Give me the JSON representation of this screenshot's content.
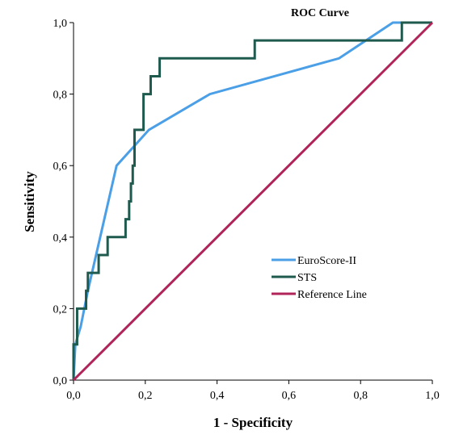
{
  "chart_data": {
    "type": "line",
    "title": "ROC Curve",
    "xlabel": "1 - Specificity",
    "ylabel": "Sensitivity",
    "xlim": [
      0,
      1
    ],
    "ylim": [
      0,
      1
    ],
    "x_ticks": [
      {
        "value": 0.0,
        "label": "0,0"
      },
      {
        "value": 0.2,
        "label": "0,2"
      },
      {
        "value": 0.4,
        "label": "0,4"
      },
      {
        "value": 0.6,
        "label": "0,6"
      },
      {
        "value": 0.8,
        "label": "0,8"
      },
      {
        "value": 1.0,
        "label": "1,0"
      }
    ],
    "y_ticks": [
      {
        "value": 0.0,
        "label": "0,0"
      },
      {
        "value": 0.2,
        "label": "0,2"
      },
      {
        "value": 0.4,
        "label": "0,4"
      },
      {
        "value": 0.6,
        "label": "0,6"
      },
      {
        "value": 0.8,
        "label": "0,8"
      },
      {
        "value": 1.0,
        "label": "1,0"
      }
    ],
    "grid": false,
    "legend_position": "lower-right",
    "series": [
      {
        "name": "EuroScore-II",
        "color": "#4a9fe6",
        "points": [
          [
            0.0,
            0.0
          ],
          [
            0.005,
            0.1
          ],
          [
            0.02,
            0.15
          ],
          [
            0.04,
            0.25
          ],
          [
            0.12,
            0.6
          ],
          [
            0.21,
            0.7
          ],
          [
            0.38,
            0.8
          ],
          [
            0.74,
            0.9
          ],
          [
            0.89,
            1.0
          ],
          [
            1.0,
            1.0
          ]
        ]
      },
      {
        "name": "STS",
        "color": "#1f5a4e",
        "points": [
          [
            0.0,
            0.0
          ],
          [
            0.0,
            0.1
          ],
          [
            0.01,
            0.1
          ],
          [
            0.01,
            0.2
          ],
          [
            0.035,
            0.2
          ],
          [
            0.035,
            0.25
          ],
          [
            0.04,
            0.25
          ],
          [
            0.04,
            0.3
          ],
          [
            0.07,
            0.3
          ],
          [
            0.07,
            0.35
          ],
          [
            0.095,
            0.35
          ],
          [
            0.095,
            0.4
          ],
          [
            0.145,
            0.4
          ],
          [
            0.145,
            0.45
          ],
          [
            0.155,
            0.45
          ],
          [
            0.155,
            0.5
          ],
          [
            0.16,
            0.5
          ],
          [
            0.16,
            0.55
          ],
          [
            0.165,
            0.55
          ],
          [
            0.165,
            0.6
          ],
          [
            0.17,
            0.6
          ],
          [
            0.17,
            0.7
          ],
          [
            0.195,
            0.7
          ],
          [
            0.195,
            0.8
          ],
          [
            0.215,
            0.8
          ],
          [
            0.215,
            0.85
          ],
          [
            0.24,
            0.85
          ],
          [
            0.24,
            0.9
          ],
          [
            0.505,
            0.9
          ],
          [
            0.505,
            0.95
          ],
          [
            0.915,
            0.95
          ],
          [
            0.915,
            1.0
          ],
          [
            1.0,
            1.0
          ]
        ]
      },
      {
        "name": "Reference Line",
        "color": "#b0245a",
        "points": [
          [
            0.0,
            0.0
          ],
          [
            1.0,
            1.0
          ]
        ]
      }
    ]
  }
}
